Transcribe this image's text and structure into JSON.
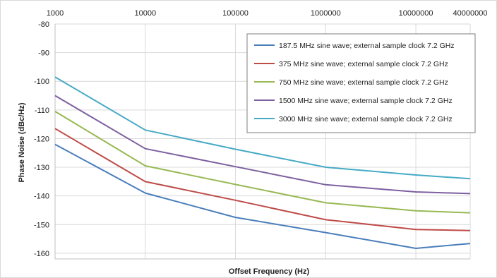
{
  "chart_data": {
    "type": "line",
    "title": "",
    "xlabel": "Offset Frequency (Hz)",
    "ylabel": "Phase Noise (dBc/Hz)",
    "x_scale": "log",
    "x": [
      1000,
      10000,
      100000,
      1000000,
      10000000,
      40000000
    ],
    "x_tick_labels": [
      "1000",
      "10000",
      "100000",
      "1000000",
      "10000000",
      "40000000"
    ],
    "xlim": [
      1000,
      40000000
    ],
    "y_ticks": [
      -80,
      -90,
      -100,
      -110,
      -120,
      -130,
      -140,
      -150,
      -160
    ],
    "ylim": [
      -162,
      -80
    ],
    "grid": true,
    "legend_position": "top-right",
    "series": [
      {
        "name": "187.5 MHz sine wave; external sample clock 7.2 GHz",
        "color": "#4a7ebb",
        "values": [
          -122,
          -139,
          -147.5,
          -152.8,
          -158.3,
          -156.6
        ]
      },
      {
        "name": "375 MHz sine wave; external sample clock 7.2 GHz",
        "color": "#be4b48",
        "values": [
          -116.5,
          -135,
          -141.5,
          -148.3,
          -151.7,
          -152.1
        ]
      },
      {
        "name": "750 MHz sine wave; external sample clock 7.2 GHz",
        "color": "#98b954",
        "values": [
          -110.5,
          -129.5,
          -136,
          -142.4,
          -145.2,
          -145.9
        ]
      },
      {
        "name": "1500 MHz sine wave; external sample clock 7.2 GHz",
        "color": "#7d60a0",
        "values": [
          -105,
          -123.5,
          -129.8,
          -136.1,
          -138.6,
          -139.2
        ]
      },
      {
        "name": "3000 MHz sine wave; external sample clock 7.2 GHz",
        "color": "#46aac5",
        "values": [
          -98.5,
          -117,
          -123.7,
          -130,
          -132.7,
          -134
        ]
      }
    ]
  }
}
